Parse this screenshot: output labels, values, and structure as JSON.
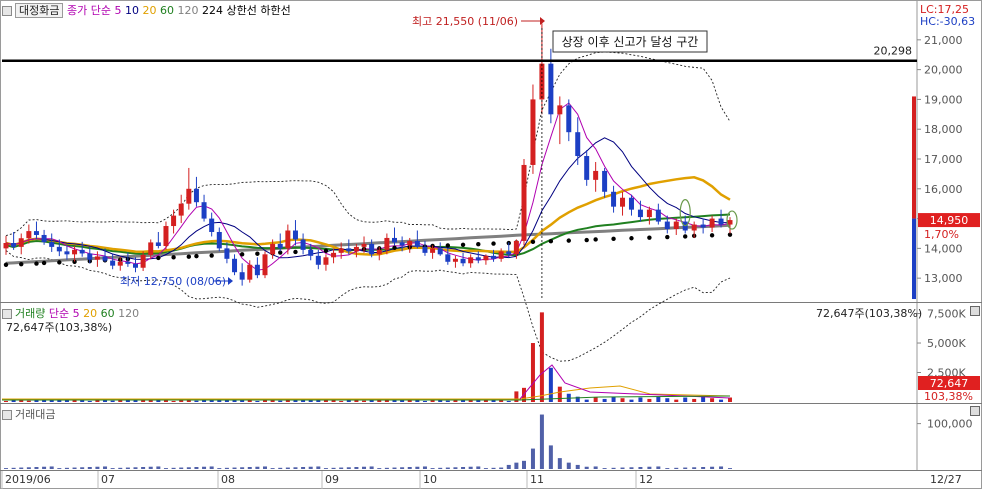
{
  "price_panel": {
    "legend": {
      "title": "대정화금",
      "items": [
        {
          "label": "종가 단순",
          "color": "#b000b0"
        },
        {
          "label": "5",
          "color": "#b000b0"
        },
        {
          "label": "10",
          "color": "#000080"
        },
        {
          "label": "20",
          "color": "#e0a000"
        },
        {
          "label": "60",
          "color": "#208020"
        },
        {
          "label": "120",
          "color": "#808080"
        },
        {
          "label": "224",
          "color": "#000000"
        },
        {
          "label": "상한선",
          "color": "#000000"
        },
        {
          "label": "하한선",
          "color": "#000000"
        }
      ]
    },
    "lc_label": "LC:17,25",
    "hc_label": "HC:-30,63",
    "annotation_high": "최고 21,550 (11/06)",
    "annotation_low": "최저 12,750 (08/06)",
    "callout": "상장 이후 신고가 달성 구간",
    "hline_label": "20,298",
    "current_price": "14,950",
    "current_change": "1,70%"
  },
  "volume_panel": {
    "title": "거래량",
    "ma_label": "단순",
    "ma_items": [
      "5",
      "20",
      "60",
      "120"
    ],
    "value_label": "72,647주(103,38%)",
    "value_label_right": "72,647주(103,38%)",
    "current": "72,647",
    "current_pct": "103,38%"
  },
  "amount_panel": {
    "title": "거래대금"
  },
  "x_axis": {
    "labels": [
      "2019/06",
      "07",
      "08",
      "09",
      "10",
      "11",
      "12"
    ],
    "end_label": "12/27"
  },
  "colors": {
    "up": "#d42020",
    "down": "#1c3fc4",
    "ma5": "#b000b0",
    "ma10": "#000080",
    "ma20": "#e0a000",
    "ma60": "#208020",
    "ma120": "#808080",
    "ma224": "#000000"
  },
  "chart_data": [
    {
      "type": "candlestick",
      "title": "대정화금",
      "y_ticks": [
        13000,
        14000,
        15000,
        16000,
        17000,
        18000,
        19000,
        20000,
        21000
      ],
      "y_tick_labels": [
        "13,000",
        "14,000",
        "15,000",
        "16,000",
        "17,000",
        "18,000",
        "19,000",
        "20,000",
        "21,000"
      ],
      "ylim": [
        12200,
        21800
      ],
      "horizontal_line": 20298,
      "high": {
        "value": 21550,
        "date": "11/06"
      },
      "low": {
        "value": 12750,
        "date": "08/06"
      },
      "last_close": 14950,
      "series": [
        {
          "name": "OHLC",
          "values": [
            [
              14000,
              14420,
              13780,
              14180
            ],
            [
              14180,
              14550,
              13950,
              14050
            ],
            [
              14050,
              14500,
              13800,
              14340
            ],
            [
              14340,
              14800,
              14160,
              14580
            ],
            [
              14580,
              14900,
              14300,
              14450
            ],
            [
              14450,
              14620,
              14120,
              14210
            ],
            [
              14210,
              14500,
              13880,
              14050
            ],
            [
              14050,
              14300,
              13740,
              13900
            ],
            [
              13900,
              14100,
              13620,
              13800
            ],
            [
              13800,
              14080,
              13560,
              13950
            ],
            [
              13950,
              14220,
              13720,
              13830
            ],
            [
              13830,
              14050,
              13500,
              13620
            ],
            [
              13620,
              13900,
              13380,
              13730
            ],
            [
              13730,
              14000,
              13540,
              13590
            ],
            [
              13590,
              13800,
              13300,
              13420
            ],
            [
              13420,
              13720,
              13250,
              13550
            ],
            [
              13550,
              13860,
              13380,
              13480
            ],
            [
              13480,
              13700,
              13200,
              13350
            ],
            [
              13350,
              13900,
              13240,
              13780
            ],
            [
              13780,
              14300,
              13650,
              14200
            ],
            [
              14200,
              14550,
              14000,
              14080
            ],
            [
              14080,
              14900,
              13950,
              14750
            ],
            [
              14750,
              15300,
              14500,
              15100
            ],
            [
              15100,
              15800,
              14850,
              15500
            ],
            [
              15500,
              16700,
              15300,
              16000
            ],
            [
              16000,
              16400,
              15400,
              15550
            ],
            [
              15550,
              15800,
              14900,
              15000
            ],
            [
              15000,
              15200,
              14400,
              14550
            ],
            [
              14550,
              14700,
              13900,
              14000
            ],
            [
              14000,
              14200,
              13500,
              13650
            ],
            [
              13650,
              13800,
              13100,
              13200
            ],
            [
              13200,
              13500,
              12750,
              12950
            ],
            [
              12950,
              13600,
              12850,
              13450
            ],
            [
              13450,
              13700,
              13000,
              13100
            ],
            [
              13100,
              13900,
              13000,
              13800
            ],
            [
              13800,
              14300,
              13650,
              14150
            ],
            [
              14150,
              14500,
              13900,
              14000
            ],
            [
              14000,
              14800,
              13800,
              14600
            ],
            [
              14600,
              14950,
              14100,
              14300
            ],
            [
              14300,
              14500,
              13800,
              13950
            ],
            [
              13950,
              14150,
              13600,
              13750
            ],
            [
              13750,
              13950,
              13300,
              13450
            ],
            [
              13450,
              13800,
              13250,
              13700
            ],
            [
              13700,
              14000,
              13500,
              13850
            ],
            [
              13850,
              14200,
              13650,
              14000
            ],
            [
              14000,
              14300,
              13800,
              13900
            ],
            [
              13900,
              14150,
              13700,
              14050
            ],
            [
              14050,
              14400,
              13850,
              14150
            ],
            [
              14150,
              14300,
              13700,
              13800
            ],
            [
              13800,
              14050,
              13600,
              13950
            ],
            [
              13950,
              14500,
              13800,
              14350
            ],
            [
              14350,
              14700,
              14100,
              14200
            ],
            [
              14200,
              14400,
              13900,
              14100
            ],
            [
              14100,
              14350,
              13850,
              14250
            ],
            [
              14250,
              14600,
              14000,
              14050
            ],
            [
              14050,
              14250,
              13750,
              13850
            ],
            [
              13850,
              14100,
              13650,
              14000
            ],
            [
              14000,
              14200,
              13750,
              13800
            ],
            [
              13800,
              14000,
              13450,
              13550
            ],
            [
              13550,
              13750,
              13350,
              13650
            ],
            [
              13650,
              13850,
              13400,
              13500
            ],
            [
              13500,
              13800,
              13350,
              13700
            ],
            [
              13700,
              13900,
              13500,
              13600
            ],
            [
              13600,
              13800,
              13450,
              13750
            ],
            [
              13750,
              13950,
              13550,
              13650
            ],
            [
              13650,
              14000,
              13550,
              13900
            ],
            [
              13900,
              14200,
              13700,
              13800
            ],
            [
              13800,
              14300,
              13650,
              14250
            ],
            [
              14250,
              17000,
              14100,
              16800
            ],
            [
              16800,
              19500,
              16500,
              19000
            ],
            [
              19000,
              21550,
              18500,
              20200
            ],
            [
              20200,
              20700,
              18200,
              18500
            ],
            [
              18500,
              19100,
              17500,
              18800
            ],
            [
              18800,
              19000,
              17600,
              17900
            ],
            [
              17900,
              18400,
              16800,
              17100
            ],
            [
              17100,
              17300,
              16100,
              16300
            ],
            [
              16300,
              16900,
              15900,
              16600
            ],
            [
              16600,
              16700,
              15700,
              15900
            ],
            [
              15900,
              16100,
              15200,
              15400
            ],
            [
              15400,
              15900,
              15100,
              15700
            ],
            [
              15700,
              15800,
              15100,
              15300
            ],
            [
              15300,
              15600,
              14900,
              15050
            ],
            [
              15050,
              15400,
              14800,
              15300
            ],
            [
              15300,
              15500,
              14800,
              14900
            ],
            [
              14900,
              15100,
              14500,
              14650
            ],
            [
              14650,
              15000,
              14450,
              14900
            ],
            [
              14900,
              15100,
              14500,
              14600
            ],
            [
              14600,
              14900,
              14350,
              14800
            ],
            [
              14800,
              15000,
              14500,
              14700
            ],
            [
              14700,
              15100,
              14550,
              15000
            ],
            [
              15000,
              15300,
              14700,
              14800
            ],
            [
              14800,
              15050,
              14500,
              14950
            ]
          ]
        },
        {
          "name": "224",
          "values": [
            13450,
            13470,
            13490,
            13510,
            13530,
            13550,
            13570,
            13600,
            13620,
            13640,
            13660,
            13680,
            13700,
            13720,
            13740,
            13760,
            13780,
            13800,
            13820,
            13840,
            13860,
            13880,
            13900,
            13920,
            13940,
            13960,
            13980,
            14000,
            14020,
            14040,
            14060,
            14080,
            14100,
            14120,
            14140,
            14160,
            14180,
            14200,
            14220,
            14240,
            14260,
            14280,
            14300,
            14320,
            14340,
            14360,
            14380,
            14400,
            14420,
            14440,
            14460
          ]
        }
      ]
    },
    {
      "type": "bar",
      "title": "거래량",
      "y_ticks": [
        2500000,
        5000000,
        7500000
      ],
      "y_tick_labels": [
        "2,500K",
        "5,000K",
        "7,500K"
      ],
      "ylim": [
        0,
        7800000
      ],
      "last_value": 72647,
      "last_pct": "103,38%"
    },
    {
      "type": "bar",
      "title": "거래대금",
      "y_ticks": [
        100000
      ],
      "y_tick_labels": [
        "100,000"
      ],
      "ylim": [
        0,
        130000
      ]
    }
  ]
}
